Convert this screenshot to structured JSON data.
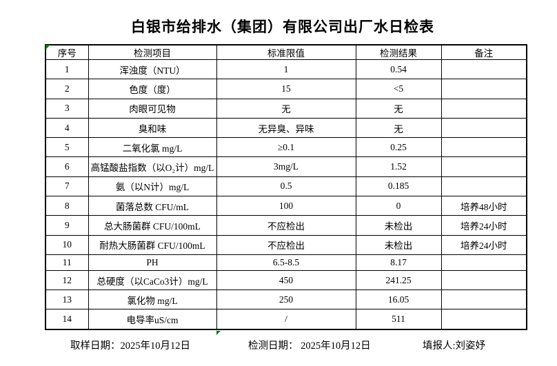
{
  "title": "白银市给排水（集团）有限公司出厂水日检表",
  "table": {
    "headers": [
      "序号",
      "检测项目",
      "标准限值",
      "检测结果",
      "备注"
    ],
    "rows": [
      [
        "1",
        "浑浊度（NTU）",
        "1",
        "0.54",
        ""
      ],
      [
        "2",
        "色度（度）",
        "15",
        "<5",
        ""
      ],
      [
        "3",
        "肉眼可见物",
        "无",
        "无",
        ""
      ],
      [
        "4",
        "臭和味",
        "无异臭、异味",
        "无",
        ""
      ],
      [
        "5",
        "二氧化氯 mg/L",
        "≥0.1",
        "0.25",
        ""
      ],
      [
        "6",
        "高锰酸盐指数（以O₂计）mg/L",
        "3mg/L",
        "1.52",
        ""
      ],
      [
        "7",
        "氨（以N计）mg/L",
        "0.5",
        "0.185",
        ""
      ],
      [
        "8",
        "菌落总数 CFU/mL",
        "100",
        "0",
        "培养48小时"
      ],
      [
        "9",
        "总大肠菌群 CFU/100mL",
        "不应检出",
        "未检出",
        "培养24小时"
      ],
      [
        "10",
        "耐热大肠菌群 CFU/100mL",
        "不应检出",
        "未检出",
        "培养24小时"
      ],
      [
        "11",
        "PH",
        "6.5-8.5",
        "8.17",
        ""
      ],
      [
        "12",
        "总硬度（以CaCo3计）mg/L",
        "450",
        "241.25",
        ""
      ],
      [
        "13",
        "氯化物 mg/L",
        "250",
        "16.05",
        ""
      ],
      [
        "14",
        "电导率uS/cm",
        "/",
        "511",
        ""
      ]
    ]
  },
  "footer": {
    "sampling": "取样日期：2025年10月12日",
    "testing": "检测日期： 2025年10月12日",
    "reporter": "填报人:刘姿妤"
  },
  "colors": {
    "marker_green": "#008000",
    "border": "#000000",
    "background": "#ffffff"
  },
  "markers": {
    "top_left_cell_triangle": "excel-green-triangle",
    "bottom_column_triangle": "excel-green-triangle"
  }
}
